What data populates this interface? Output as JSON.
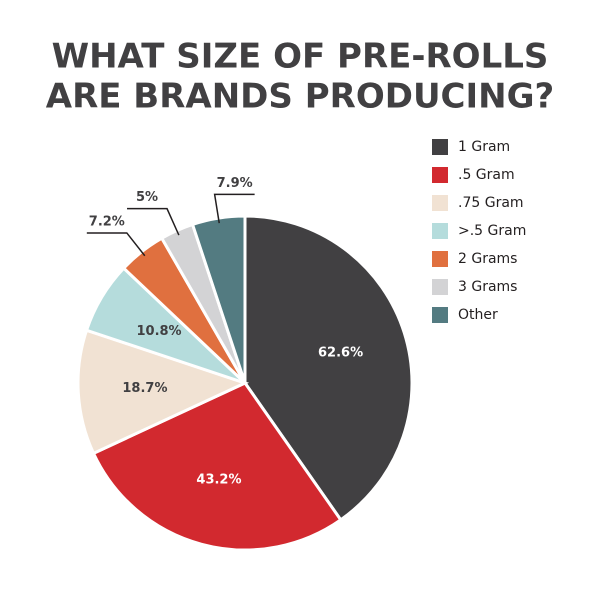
{
  "chart_data": {
    "type": "pie",
    "title": [
      "WHAT SIZE OF PRE-ROLLS",
      "ARE BRANDS PRODUCING?"
    ],
    "categories": [
      "1 Gram",
      ".5 Gram",
      ".75 Gram",
      ">.5 Gram",
      "2 Grams",
      "3 Grams",
      "Other"
    ],
    "values": [
      62.6,
      43.2,
      18.7,
      10.8,
      7.2,
      5,
      7.9
    ],
    "value_labels": [
      "62.6%",
      "43.2%",
      "18.7%",
      "10.8%",
      "7.2%",
      "5%",
      "7.9%"
    ],
    "colors": [
      "#414042",
      "#d2292f",
      "#f1e2d3",
      "#b5dcdc",
      "#e0703f",
      "#d3d3d5",
      "#537b81"
    ],
    "legend": "right"
  }
}
